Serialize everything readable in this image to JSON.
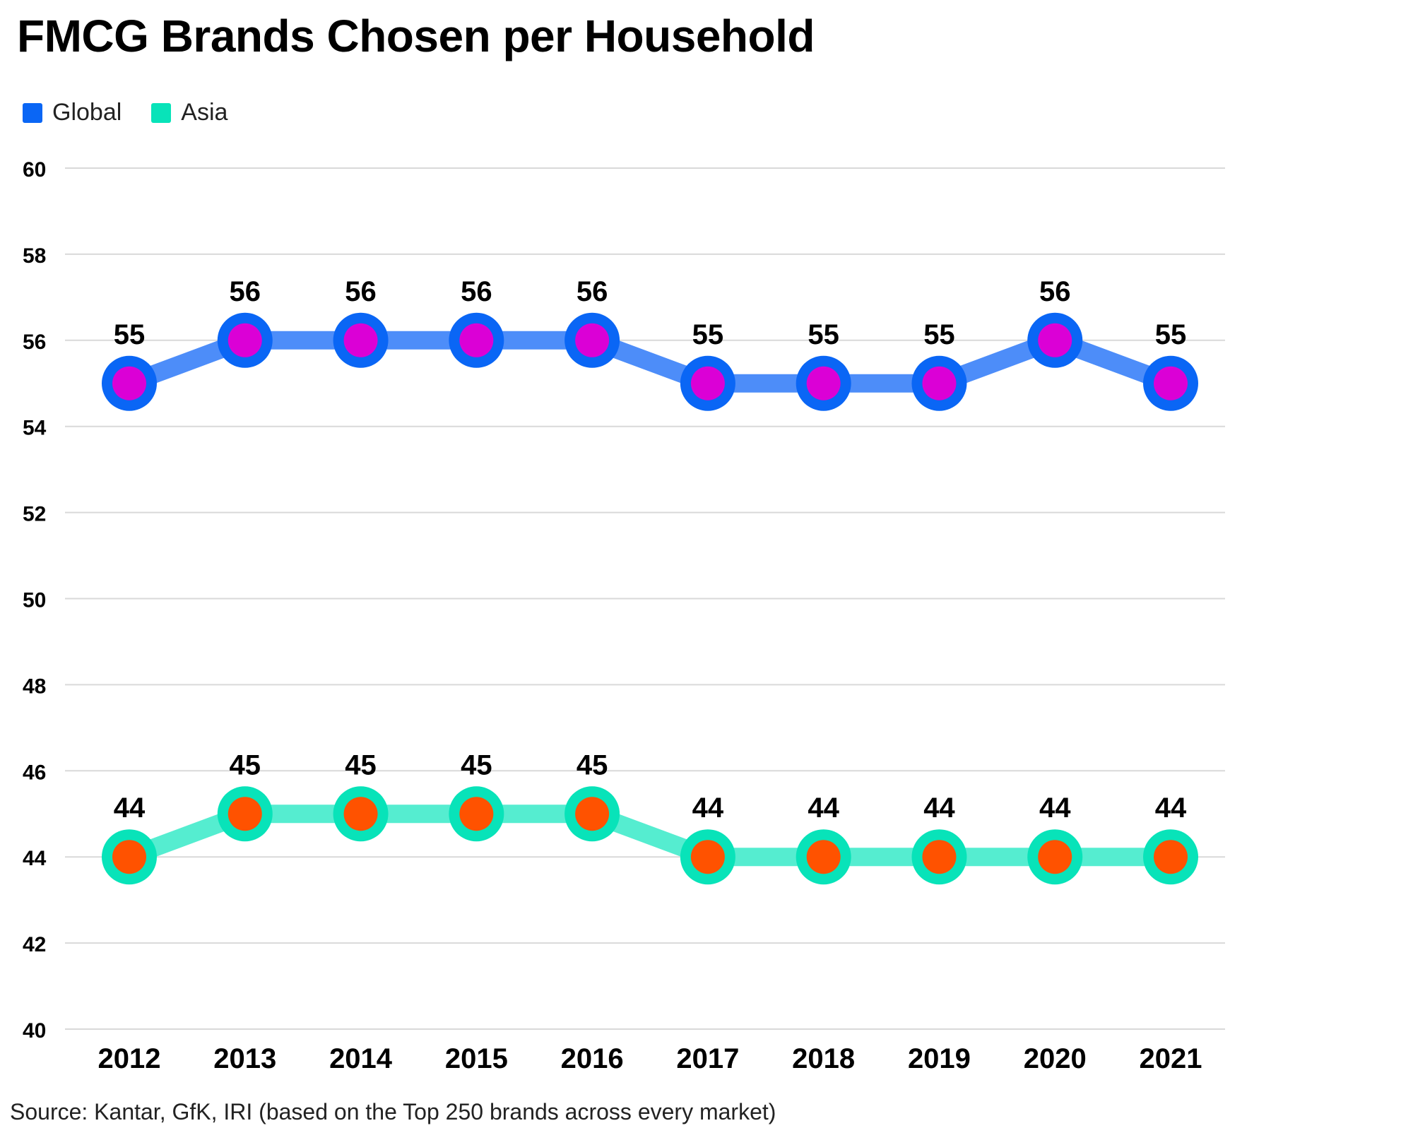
{
  "colors": {
    "global_line": "#4D8DF9",
    "global_ring": "#0A66F5",
    "global_dot": "#DB00D6",
    "asia_line": "#55EDD0",
    "asia_ring": "#08E3B9",
    "asia_dot": "#FF5200",
    "gridline": "#D9D9D9"
  },
  "chart_data": {
    "type": "line",
    "title": "FMCG Brands Chosen per Household",
    "source": "Source: Kantar, GfK, IRI (based on the Top 250 brands across every market)",
    "categories": [
      "2012",
      "2013",
      "2014",
      "2015",
      "2016",
      "2017",
      "2018",
      "2019",
      "2020",
      "2021"
    ],
    "series": [
      {
        "name": "Global",
        "values": [
          55,
          56,
          56,
          56,
          56,
          55,
          55,
          55,
          56,
          55
        ]
      },
      {
        "name": "Asia",
        "values": [
          44,
          45,
          45,
          45,
          45,
          44,
          44,
          44,
          44,
          44
        ]
      }
    ],
    "ylim": [
      40,
      60
    ],
    "yticks": [
      "40",
      "42",
      "44",
      "46",
      "48",
      "50",
      "52",
      "54",
      "56",
      "58",
      "60"
    ],
    "grid": true,
    "legend_position": "top-left"
  }
}
